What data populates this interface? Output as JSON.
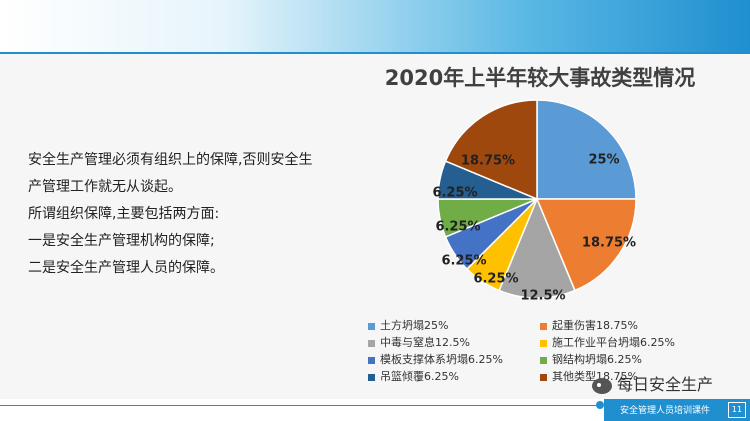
{
  "slide": {
    "body_lines": [
      "安全生产管理必须有组织上的保障,否则安全生",
      "产管理工作就无从谈起。",
      "所谓组织保障,主要包括两方面:",
      "一是安全生产管理机构的保障;",
      "二是安全生产管理人员的保障。"
    ],
    "footer_text": "安全管理人员培训课件",
    "page_number": "11",
    "watermark": "每日安全生产"
  },
  "chart_data": {
    "type": "pie",
    "title": "2020年上半年较大事故类型情况",
    "slices": [
      {
        "name": "土方坍塌25%",
        "value": 25,
        "label": "25%",
        "color": "#5b9bd5"
      },
      {
        "name": "起重伤害18.75%",
        "value": 18.75,
        "label": "18.75%",
        "color": "#ed7d31"
      },
      {
        "name": "中毒与窒息12.5%",
        "value": 12.5,
        "label": "12.5%",
        "color": "#a5a5a5"
      },
      {
        "name": "施工作业平台坍塌6.25%",
        "value": 6.25,
        "label": "6.25%",
        "color": "#ffc000"
      },
      {
        "name": "模板支撑体系坍塌6.25%",
        "value": 6.25,
        "label": "6.25%",
        "color": "#4472c4"
      },
      {
        "name": "钢结构坍塌6.25%",
        "value": 6.25,
        "label": "6.25%",
        "color": "#70ad47"
      },
      {
        "name": "吊篮倾覆6.25%",
        "value": 6.25,
        "label": "6.25%",
        "color": "#255e91"
      },
      {
        "name": "其他类型18.75%",
        "value": 18.75,
        "label": "18.75%",
        "color": "#9e480e"
      }
    ],
    "legend_position": "bottom"
  }
}
